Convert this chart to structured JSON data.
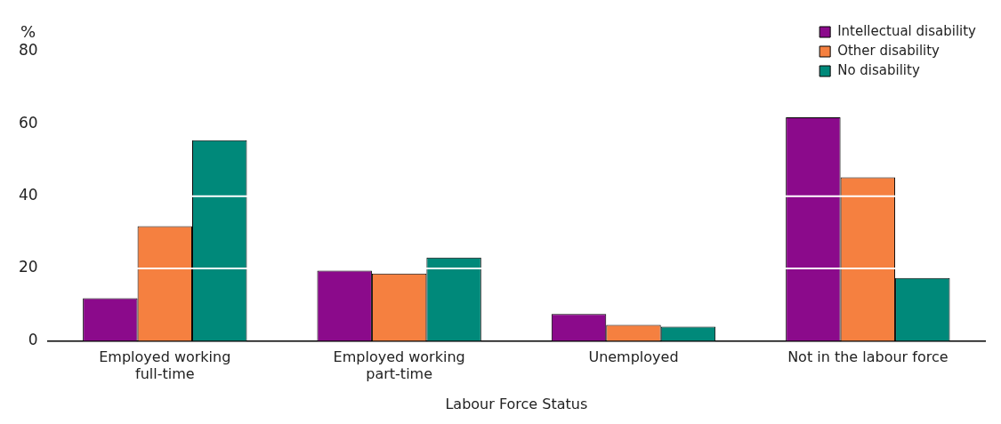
{
  "chart_data": {
    "type": "bar",
    "ylabel": "%",
    "xlabel": "Labour Force Status",
    "categories": [
      "Employed working full-time",
      "Employed working part-time",
      "Unemployed",
      "Not in the labour force"
    ],
    "series": [
      {
        "name": "Intellectual disability",
        "color": "#8b0a8b",
        "values": [
          11.8,
          19.4,
          7.4,
          61.8
        ]
      },
      {
        "name": "Other disability",
        "color": "#f58040",
        "values": [
          31.7,
          18.6,
          4.4,
          45.2
        ]
      },
      {
        "name": "No disability",
        "color": "#00897a",
        "values": [
          55.5,
          23,
          3.9,
          17.4
        ]
      }
    ],
    "ylim": [
      0,
      80
    ],
    "yticks": [
      0,
      20,
      40,
      60,
      80
    ],
    "grid": "y",
    "legend": "top right"
  }
}
